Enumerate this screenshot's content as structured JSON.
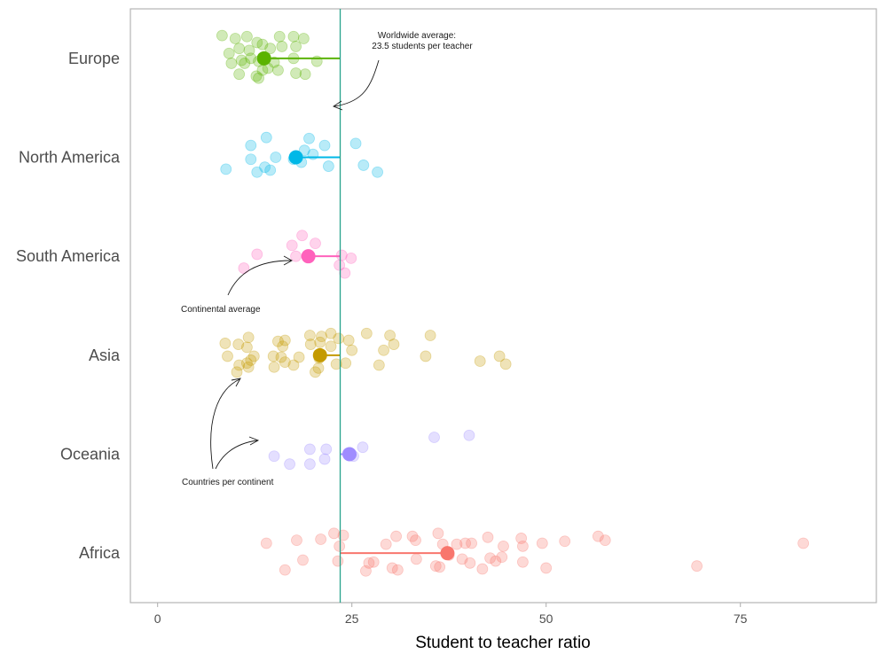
{
  "chart_data": {
    "type": "scatter",
    "title": "",
    "xlabel": "Student to teacher ratio",
    "ylabel": "",
    "xlim": [
      -3.5,
      92.5
    ],
    "xticks": [
      0,
      25,
      50,
      75
    ],
    "grid": false,
    "legend": "none",
    "categories": [
      "Europe",
      "North America",
      "South America",
      "Asia",
      "Oceania",
      "Africa"
    ],
    "worldwide_average": 23.5,
    "series": [
      {
        "category": "Europe",
        "color": "#5BB300",
        "mean": 13.7,
        "points": [
          [
            8.3,
            0.23
          ],
          [
            10,
            0.2
          ],
          [
            11.5,
            0.22
          ],
          [
            12.8,
            0.16
          ],
          [
            15.7,
            0.22
          ],
          [
            17.5,
            0.22
          ],
          [
            18.8,
            0.2
          ],
          [
            9.2,
            0.05
          ],
          [
            10.5,
            0.1
          ],
          [
            11.8,
            0.08
          ],
          [
            13.5,
            0.14
          ],
          [
            14.5,
            0.1
          ],
          [
            16,
            0.12
          ],
          [
            17.8,
            0.12
          ],
          [
            9.5,
            -0.05
          ],
          [
            10.8,
            -0.02
          ],
          [
            12,
            0.0
          ],
          [
            13,
            -0.03
          ],
          [
            15,
            -0.04
          ],
          [
            17.5,
            0.0
          ],
          [
            20.5,
            -0.03
          ],
          [
            10.5,
            -0.16
          ],
          [
            12.7,
            -0.18
          ],
          [
            13.5,
            -0.12
          ],
          [
            14.2,
            -0.1
          ],
          [
            15.5,
            -0.12
          ],
          [
            17.8,
            -0.15
          ],
          [
            19,
            -0.16
          ],
          [
            13,
            -0.2
          ],
          [
            11.2,
            -0.05
          ]
        ]
      },
      {
        "category": "North America",
        "color": "#00B8E7",
        "mean": 17.8,
        "points": [
          [
            14,
            0.2
          ],
          [
            12,
            0.12
          ],
          [
            19.5,
            0.19
          ],
          [
            21.5,
            0.12
          ],
          [
            25.5,
            0.14
          ],
          [
            18.9,
            0.07
          ],
          [
            20,
            0.03
          ],
          [
            15.2,
            0.0
          ],
          [
            17.5,
            -0.02
          ],
          [
            12,
            -0.02
          ],
          [
            8.8,
            -0.12
          ],
          [
            12.8,
            -0.15
          ],
          [
            13.8,
            -0.1
          ],
          [
            14.5,
            -0.13
          ],
          [
            22,
            -0.09
          ],
          [
            26.5,
            -0.08
          ],
          [
            28.3,
            -0.15
          ],
          [
            18.5,
            -0.05
          ]
        ]
      },
      {
        "category": "South America",
        "color": "#FF62BC",
        "mean": 19.4,
        "points": [
          [
            18.6,
            0.21
          ],
          [
            17.3,
            0.11
          ],
          [
            20.3,
            0.13
          ],
          [
            12.8,
            0.02
          ],
          [
            17.8,
            0.0
          ],
          [
            23.7,
            0.01
          ],
          [
            24.9,
            -0.02
          ],
          [
            11.1,
            -0.12
          ],
          [
            23.4,
            -0.09
          ],
          [
            24.1,
            -0.17
          ]
        ]
      },
      {
        "category": "Asia",
        "color": "#C49A00",
        "mean": 20.9,
        "points": [
          [
            11.7,
            0.18
          ],
          [
            15.5,
            0.14
          ],
          [
            16.4,
            0.15
          ],
          [
            19.6,
            0.2
          ],
          [
            21.1,
            0.19
          ],
          [
            22.3,
            0.22
          ],
          [
            23.3,
            0.17
          ],
          [
            24.6,
            0.15
          ],
          [
            26.9,
            0.22
          ],
          [
            29.9,
            0.2
          ],
          [
            35.1,
            0.2
          ],
          [
            8.7,
            0.12
          ],
          [
            10.4,
            0.11
          ],
          [
            11.5,
            0.08
          ],
          [
            16.1,
            0.09
          ],
          [
            19.7,
            0.11
          ],
          [
            20.9,
            0.13
          ],
          [
            22.3,
            0.09
          ],
          [
            25,
            0.05
          ],
          [
            29.1,
            0.05
          ],
          [
            30.4,
            0.11
          ],
          [
            9,
            -0.01
          ],
          [
            12.4,
            -0.01
          ],
          [
            14.9,
            -0.01
          ],
          [
            15.9,
            -0.02
          ],
          [
            18.2,
            -0.02
          ],
          [
            20.8,
            -0.03
          ],
          [
            34.5,
            -0.01
          ],
          [
            44,
            -0.01
          ],
          [
            10.5,
            -0.1
          ],
          [
            11.5,
            -0.08
          ],
          [
            11.7,
            -0.12
          ],
          [
            15,
            -0.12
          ],
          [
            16.4,
            -0.07
          ],
          [
            20.3,
            -0.17
          ],
          [
            20.7,
            -0.13
          ],
          [
            23,
            -0.09
          ],
          [
            28.5,
            -0.1
          ],
          [
            41.5,
            -0.06
          ],
          [
            44.8,
            -0.09
          ],
          [
            10.2,
            -0.17
          ],
          [
            12,
            -0.05
          ],
          [
            17.5,
            -0.1
          ],
          [
            24.2,
            -0.08
          ]
        ]
      },
      {
        "category": "Oceania",
        "color": "#9F8CFF",
        "mean": 24.7,
        "points": [
          [
            19.6,
            0.05
          ],
          [
            21.7,
            0.05
          ],
          [
            26.4,
            0.07
          ],
          [
            35.6,
            0.17
          ],
          [
            40.1,
            0.19
          ],
          [
            15,
            -0.02
          ],
          [
            17,
            -0.1
          ],
          [
            19.6,
            -0.1
          ],
          [
            21.5,
            -0.05
          ],
          [
            25.2,
            -0.02
          ],
          [
            24.5,
            0.01
          ]
        ]
      },
      {
        "category": "Africa",
        "color": "#F8766D",
        "mean": 37.3,
        "points": [
          [
            14,
            0.1
          ],
          [
            17.9,
            0.13
          ],
          [
            21,
            0.14
          ],
          [
            22.7,
            0.2
          ],
          [
            23.9,
            0.18
          ],
          [
            29.4,
            0.09
          ],
          [
            30.7,
            0.17
          ],
          [
            32.8,
            0.17
          ],
          [
            33.2,
            0.13
          ],
          [
            36.1,
            0.2
          ],
          [
            36.7,
            0.09
          ],
          [
            38.5,
            0.09
          ],
          [
            39.6,
            0.1
          ],
          [
            40.4,
            0.1
          ],
          [
            42.5,
            0.16
          ],
          [
            44.5,
            0.07
          ],
          [
            46.8,
            0.15
          ],
          [
            47,
            0.07
          ],
          [
            49.5,
            0.1
          ],
          [
            52.4,
            0.12
          ],
          [
            56.7,
            0.17
          ],
          [
            57.6,
            0.13
          ],
          [
            83.1,
            0.1
          ],
          [
            23.4,
            0.07
          ],
          [
            18.7,
            -0.07
          ],
          [
            23.2,
            -0.08
          ],
          [
            27.2,
            -0.1
          ],
          [
            27.8,
            -0.09
          ],
          [
            30.2,
            -0.15
          ],
          [
            30.9,
            -0.17
          ],
          [
            33.3,
            -0.06
          ],
          [
            35.8,
            -0.13
          ],
          [
            36.3,
            -0.14
          ],
          [
            39.2,
            -0.06
          ],
          [
            40.2,
            -0.1
          ],
          [
            42.8,
            -0.05
          ],
          [
            43.5,
            -0.08
          ],
          [
            44.3,
            -0.04
          ],
          [
            47,
            -0.09
          ],
          [
            50,
            -0.15
          ],
          [
            69.4,
            -0.13
          ],
          [
            16.4,
            -0.17
          ],
          [
            26.8,
            -0.18
          ],
          [
            41.8,
            -0.16
          ],
          [
            37.5,
            -0.02
          ]
        ]
      }
    ],
    "annotations": [
      {
        "text_lines": [
          "Worldwide average:",
          "23.5 students per teacher"
        ]
      },
      {
        "text_lines": [
          "Continental average"
        ]
      },
      {
        "text_lines": [
          "Countries per continent"
        ]
      }
    ]
  }
}
